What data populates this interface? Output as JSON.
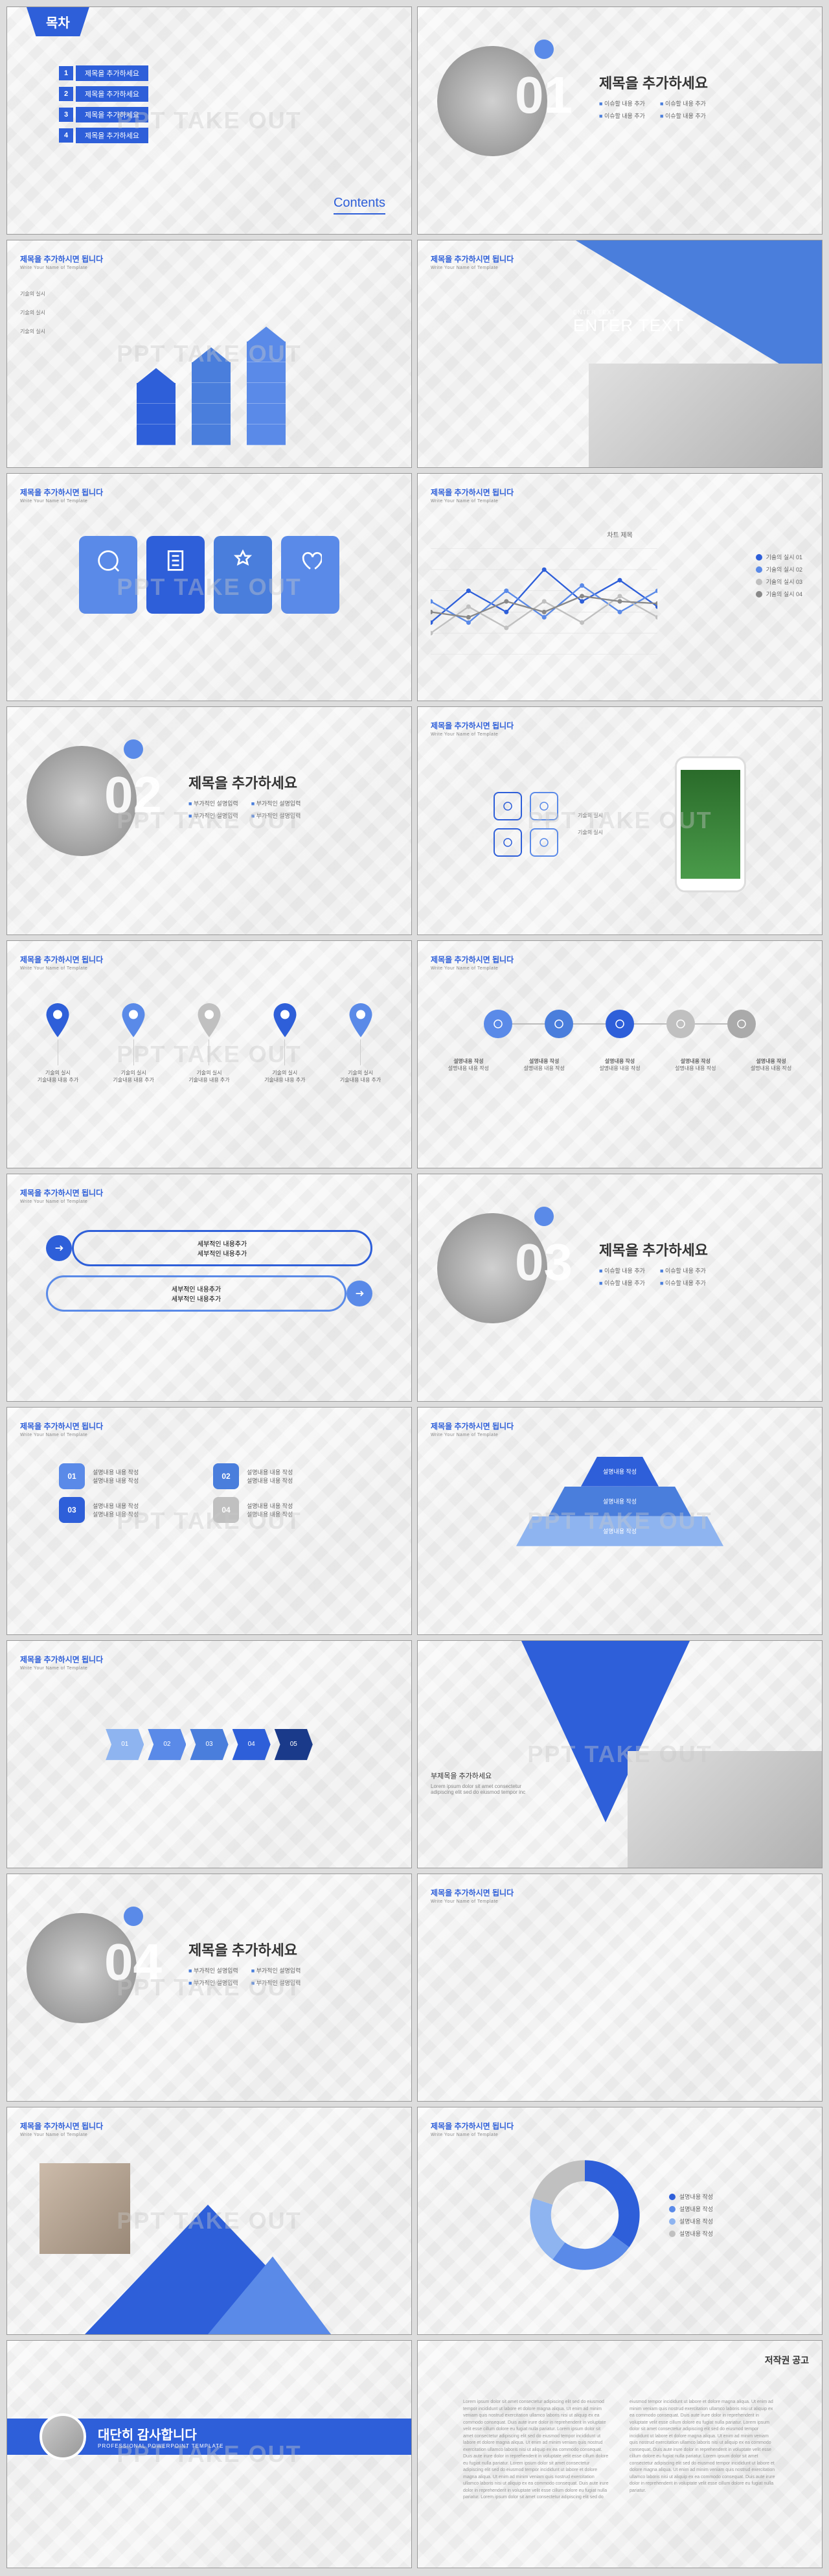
{
  "watermark": "PPT TAKE OUT",
  "colors": {
    "primary": "#2e5fd9",
    "primary_light": "#5a8ae8",
    "primary_lighter": "#8eb4f0",
    "accent": "#4a7edc",
    "grey": "#c0c0c0",
    "grey_dark": "#888888",
    "bg": "#f5f5f5"
  },
  "header": {
    "title": "제목을 추가하시면 됩니다",
    "subtitle": "Write Your Name of Template"
  },
  "s1": {
    "title": "목차",
    "items": [
      "제목을 추가하세요",
      "제목을 추가하세요",
      "제목을 추가하세요",
      "제목을 추가하세요"
    ],
    "footer": "Contents"
  },
  "section": {
    "title": "제목을 추가하세요",
    "bullet": "부가적인 설명입력",
    "bullet2": "이슈할 내용 추가"
  },
  "bars": {
    "labels": [
      "기술의 실시",
      "기술의 실시",
      "기술의 실시"
    ],
    "heights": [
      3,
      4,
      5
    ],
    "colors": [
      "#2e5fd9",
      "#4a7edc",
      "#5a8ae8"
    ]
  },
  "enter_text": {
    "label": "ENTER TEXT",
    "title": "ENTER TEXT"
  },
  "icons": {
    "colors": [
      "#5a8ae8",
      "#2e5fd9",
      "#4a7edc",
      "#5a8ae8"
    ]
  },
  "linechart": {
    "title": "차트 제목",
    "series": [
      {
        "color": "#2e5fd9",
        "points": [
          30,
          60,
          40,
          80,
          50,
          70,
          45
        ],
        "label": "기술의 실시 01"
      },
      {
        "color": "#5a8ae8",
        "points": [
          50,
          30,
          60,
          35,
          65,
          40,
          60
        ],
        "label": "기술의 실시 02"
      },
      {
        "color": "#c0c0c0",
        "points": [
          20,
          45,
          25,
          50,
          30,
          55,
          35
        ],
        "label": "기술의 실시 03"
      },
      {
        "color": "#888888",
        "points": [
          40,
          35,
          50,
          40,
          55,
          50,
          48
        ],
        "label": "기술의 실시 04"
      }
    ]
  },
  "pins": {
    "colors": [
      "#2e5fd9",
      "#5a8ae8",
      "#c0c0c0",
      "#2e5fd9",
      "#5a8ae8"
    ],
    "label1": "기술의 실시",
    "label2": "기술내용 내용 추가"
  },
  "timeline": {
    "colors": [
      "#5a8ae8",
      "#4a7edc",
      "#2e5fd9",
      "#c0c0c0",
      "#aaaaaa"
    ],
    "label": "설명내용 작성",
    "sublabel": "설명내용 내용 작성"
  },
  "flow": {
    "text": "세부적인 내용추가",
    "colors": [
      "#2e5fd9",
      "#5a8ae8"
    ]
  },
  "numboxes": {
    "nums": [
      "01",
      "02",
      "03",
      "04"
    ],
    "colors": [
      "#5a8ae8",
      "#4a7edc",
      "#2e5fd9",
      "#c0c0c0"
    ],
    "text": "설명내용 내용 작성"
  },
  "pyramid": {
    "labels": [
      "설명내용 작성",
      "설명내용 작성",
      "설명내용 작성"
    ],
    "colors": [
      "#2e5fd9",
      "#4a7edc",
      "#8eb4f0"
    ],
    "widths": [
      120,
      220,
      320
    ]
  },
  "arrows": {
    "labels": [
      "01",
      "02",
      "03",
      "04",
      "05"
    ],
    "colors": [
      "#8eb4f0",
      "#5a8ae8",
      "#4a7edc",
      "#2e5fd9",
      "#1a3a8a"
    ]
  },
  "subtitle_text": "부제목을 추가하세요",
  "donut": {
    "segments": [
      {
        "color": "#2e5fd9",
        "pct": 35
      },
      {
        "color": "#5a8ae8",
        "pct": 25
      },
      {
        "color": "#8eb4f0",
        "pct": 20
      },
      {
        "color": "#c0c0c0",
        "pct": 20
      }
    ]
  },
  "thanks": {
    "title": "대단히 감사합니다",
    "subtitle": "PROFESSIONAL POWERPOINT TEMPLATE"
  },
  "copyright": {
    "title": "저작권 공고"
  },
  "lorem": "Lorem ipsum dolor sit amet consectetur adipiscing elit sed do eiusmod tempor incididunt ut labore et dolore magna aliqua. Ut enim ad minim veniam quis nostrud exercitation ullamco laboris nisi ut aliquip ex ea commodo consequat. Duis aute irure dolor in reprehenderit in voluptate velit esse cillum dolore eu fugiat nulla pariatur."
}
